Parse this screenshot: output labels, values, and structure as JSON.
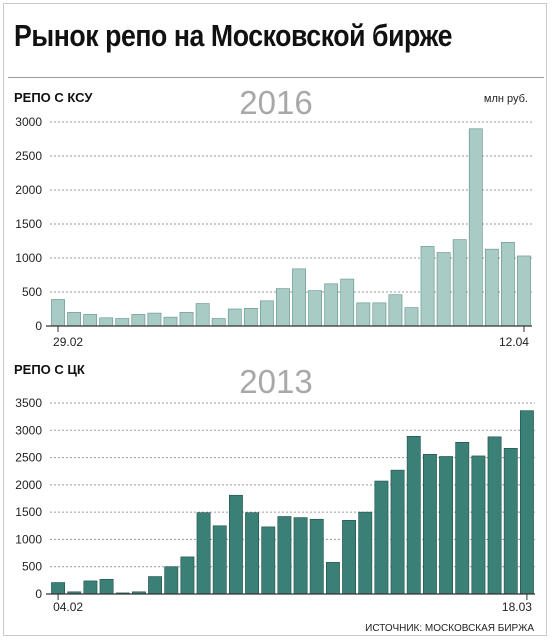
{
  "title": "Рынок репо на Московской бирже",
  "source": "ИСТОЧНИК: МОСКОВСКАЯ БИРЖА",
  "chart_data": [
    {
      "type": "bar",
      "title": "РЕПО С КСУ",
      "year": "2016",
      "unit": "млн руб.",
      "ylim": [
        0,
        3000
      ],
      "yticks": [
        0,
        500,
        1000,
        1500,
        2000,
        2500,
        3000
      ],
      "first_label": "29.02",
      "last_label": "12.04",
      "color": "#a9cbc6",
      "edge": "#5f8f88",
      "values": [
        390,
        200,
        170,
        120,
        110,
        170,
        190,
        130,
        200,
        330,
        110,
        250,
        260,
        370,
        550,
        840,
        520,
        620,
        690,
        340,
        340,
        460,
        270,
        1170,
        1080,
        1270,
        2900,
        1130,
        1230,
        1030
      ]
    },
    {
      "type": "bar",
      "title": "РЕПО С ЦК",
      "year": "2013",
      "ylim": [
        0,
        3500
      ],
      "yticks": [
        0,
        500,
        1000,
        1500,
        2000,
        2500,
        3000,
        3500
      ],
      "first_label": "04.02",
      "last_label": "18.03",
      "color": "#3a8077",
      "edge": "#1f4f49",
      "values": [
        210,
        40,
        240,
        270,
        20,
        40,
        320,
        500,
        680,
        1490,
        1250,
        1810,
        1490,
        1230,
        1420,
        1400,
        1370,
        580,
        1350,
        1500,
        2070,
        2270,
        2890,
        2560,
        2520,
        2780,
        2530,
        2880,
        2670,
        3360
      ]
    }
  ]
}
